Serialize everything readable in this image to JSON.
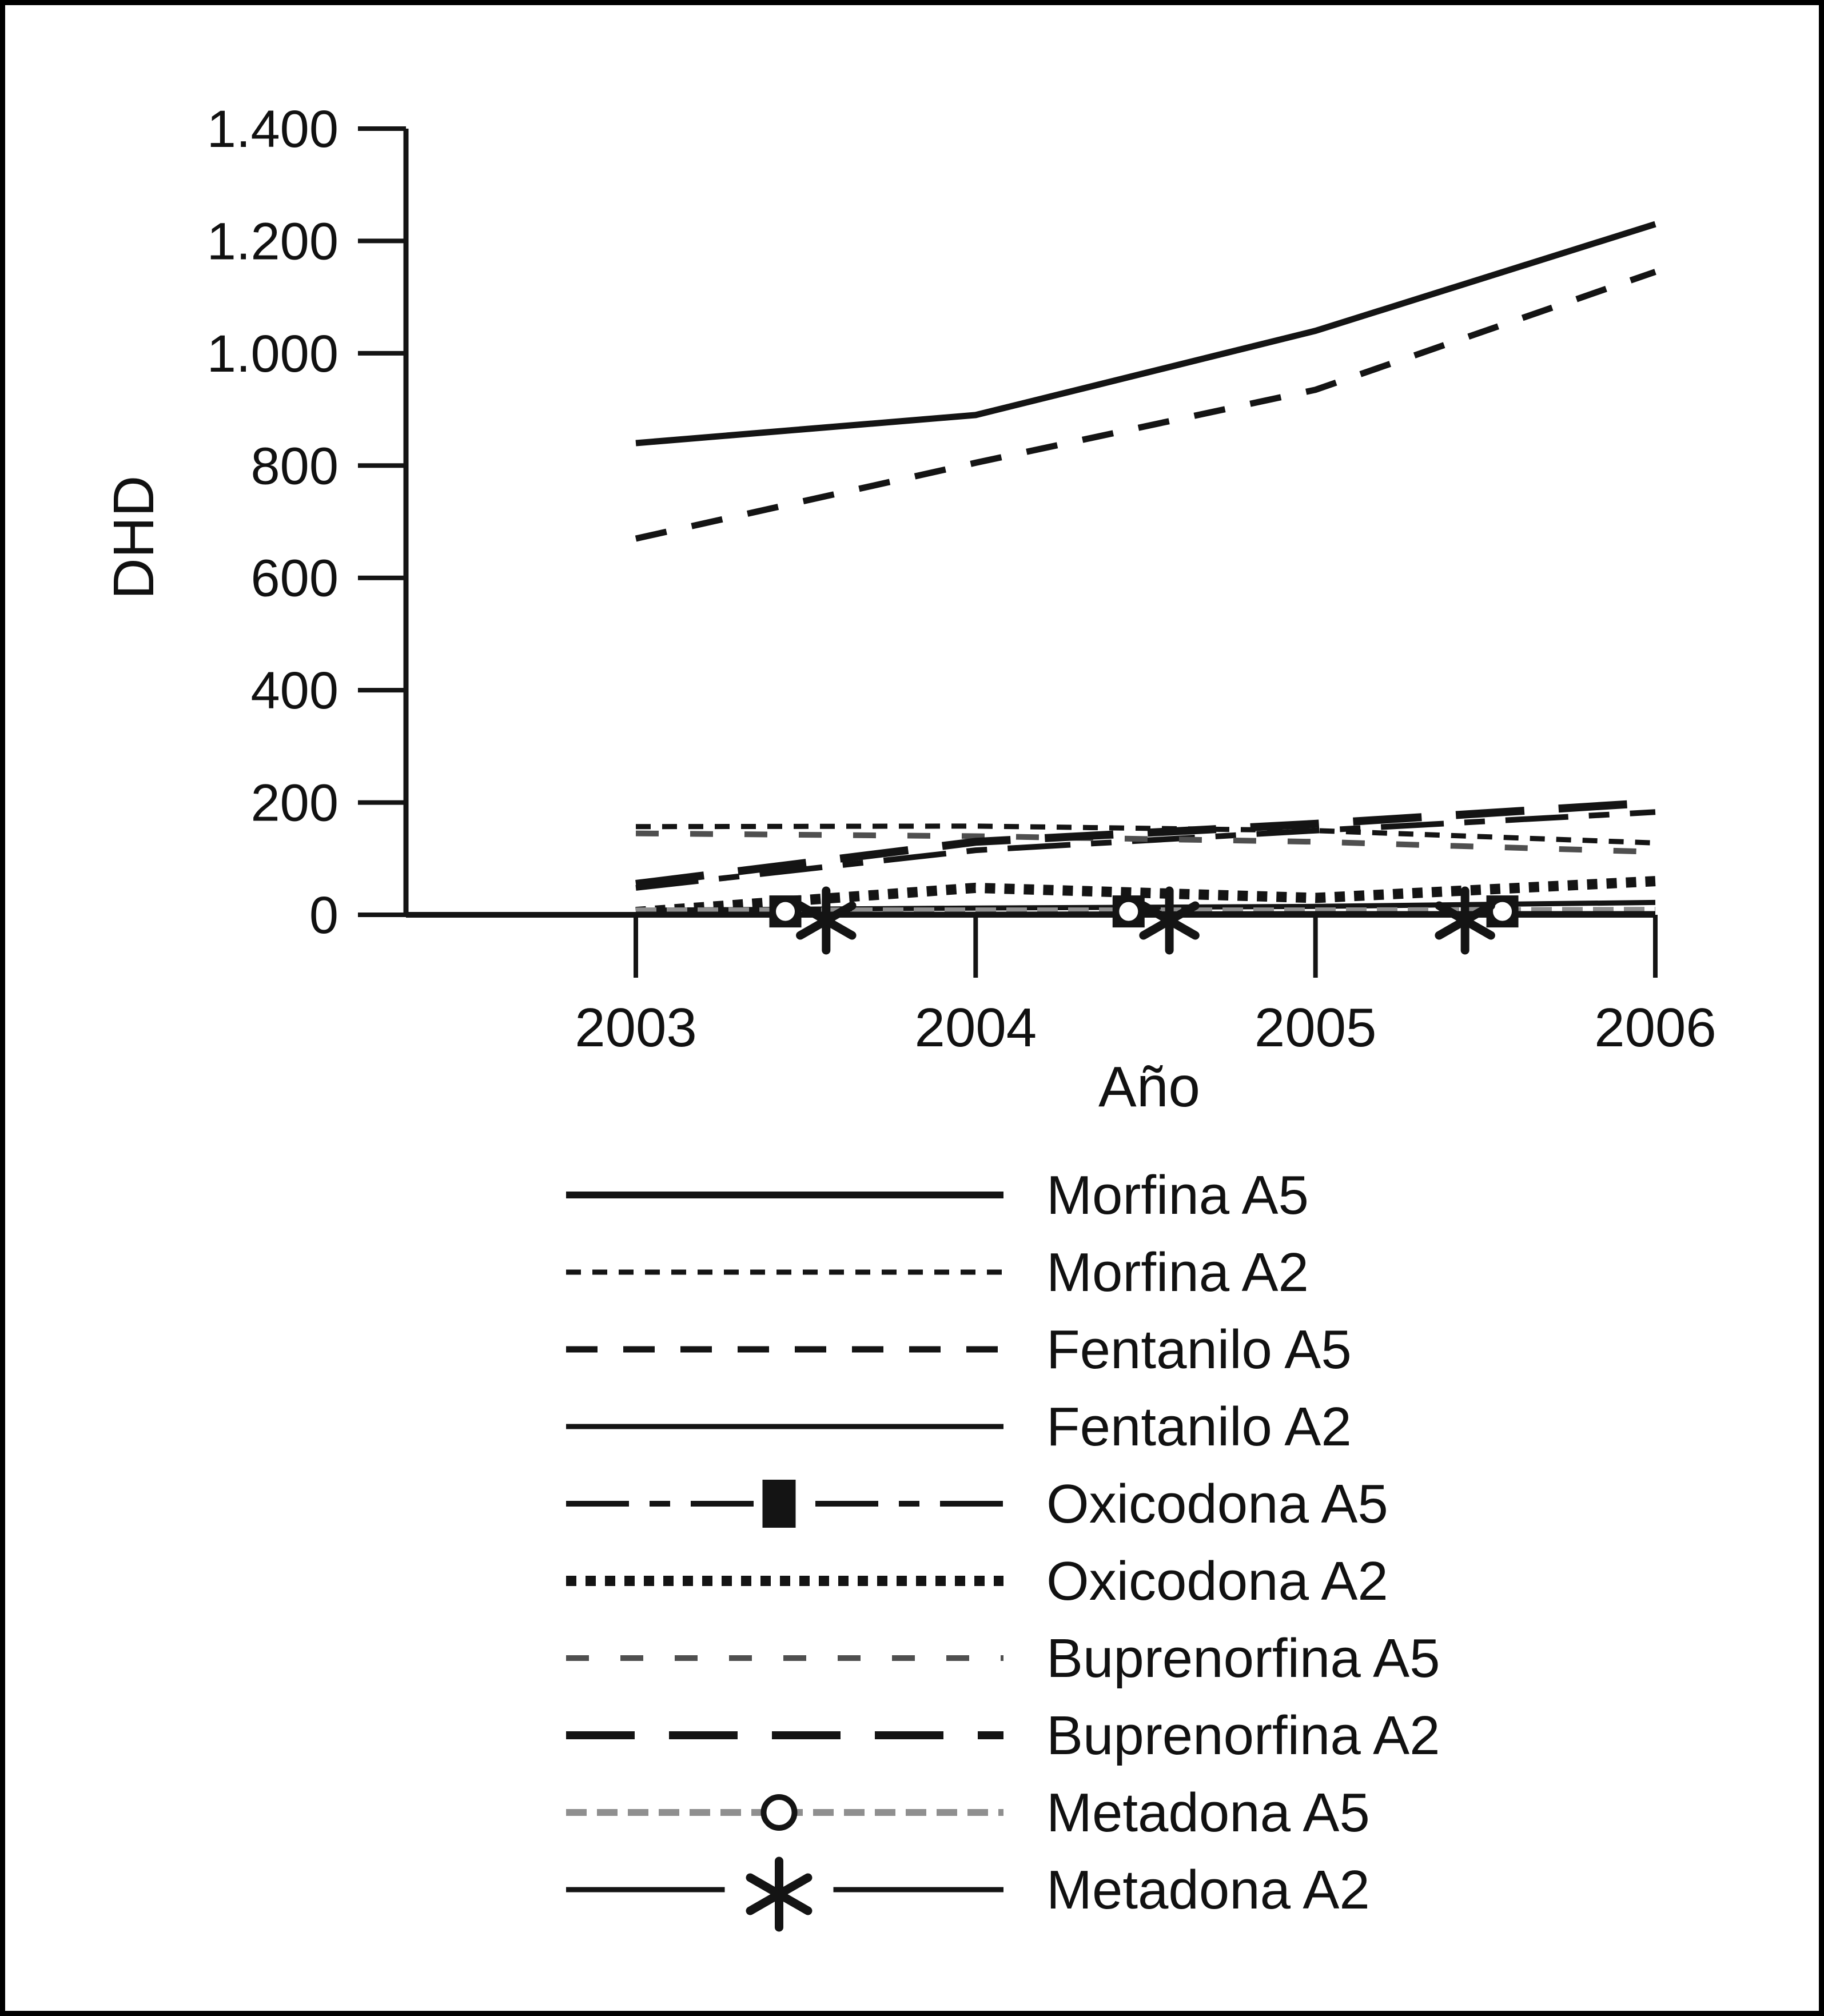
{
  "chart_data": {
    "type": "line",
    "title": "",
    "xlabel": "Año",
    "ylabel": "DHD",
    "x": [
      2003,
      2004,
      2005,
      2006
    ],
    "x_tick_labels": [
      "2003",
      "2004",
      "2005",
      "2006"
    ],
    "y_ticks": [
      0,
      200,
      400,
      600,
      800,
      1000,
      1200,
      1400
    ],
    "y_tick_labels": [
      "0",
      "200",
      "400",
      "600",
      "800",
      "1.000",
      "1.200",
      "1.400"
    ],
    "ylim": [
      0,
      1400
    ],
    "grid": false,
    "legend_position": "bottom",
    "line_color": "#141414",
    "gray_color": "#8f8f8f",
    "series": [
      {
        "name": "Morfina A5",
        "values": [
          840,
          890,
          1040,
          1230
        ],
        "pattern": "solid",
        "dash": "",
        "width": 11,
        "color": "#141414",
        "marker": "none"
      },
      {
        "name": "Morfina A2",
        "values": [
          157,
          158,
          150,
          128
        ],
        "pattern": "fine-dotted",
        "dash": "26 20",
        "width": 9,
        "color": "#141414",
        "marker": "none"
      },
      {
        "name": "Fentanilo A5",
        "values": [
          670,
          805,
          935,
          1145
        ],
        "pattern": "dashed",
        "dash": "55 45",
        "width": 11,
        "color": "#141414",
        "marker": "none"
      },
      {
        "name": "Fentanilo A2",
        "values": [
          8,
          12,
          15,
          22
        ],
        "pattern": "solid-thin",
        "dash": "",
        "width": 9,
        "color": "#141414",
        "marker": "none"
      },
      {
        "name": "Oxicodona A5",
        "values": [
          48,
          115,
          150,
          183
        ],
        "pattern": "dash-dot",
        "dash": "110 36 36 36",
        "width": 10,
        "color": "#141414",
        "marker": "square"
      },
      {
        "name": "Oxicodona A2",
        "values": [
          5,
          48,
          30,
          60
        ],
        "pattern": "thick-dotted",
        "dash": "18 16",
        "width": 18,
        "color": "#141414",
        "marker": "none"
      },
      {
        "name": "Buprenorfina A5",
        "values": [
          145,
          140,
          130,
          112
        ],
        "pattern": "sparse-dash",
        "dash": "40 55",
        "width": 10,
        "color": "#4f4f4f",
        "marker": "none"
      },
      {
        "name": "Buprenorfina A2",
        "values": [
          55,
          130,
          162,
          200
        ],
        "pattern": "long-dash",
        "dash": "120 60",
        "width": 14,
        "color": "#141414",
        "marker": "none"
      },
      {
        "name": "Metadona A5",
        "values": [
          7,
          7,
          7,
          8
        ],
        "pattern": "gray-dash",
        "dash": "36 18",
        "width": 12,
        "color": "#8f8f8f",
        "marker": "circle"
      },
      {
        "name": "Metadona A2",
        "values": [
          1,
          1,
          2,
          2
        ],
        "pattern": "solid-thin",
        "dash": "",
        "width": 9,
        "color": "#141414",
        "marker": "asterisk"
      }
    ],
    "markers": {
      "circle_square_x": [
        2003.44,
        2004.45,
        2005.55
      ],
      "circle_square_value": 6,
      "asterisk_x": [
        2003.56,
        2004.57,
        2005.44
      ],
      "asterisk_value": 0
    }
  },
  "legend": {
    "items": [
      "Morfina A5",
      "Morfina A2",
      "Fentanilo A5",
      "Fentanilo A2",
      "Oxicodona A5",
      "Oxicodona A2",
      "Buprenorfina A5",
      "Buprenorfina A2",
      "Metadona A5",
      "Metadona A2"
    ]
  }
}
